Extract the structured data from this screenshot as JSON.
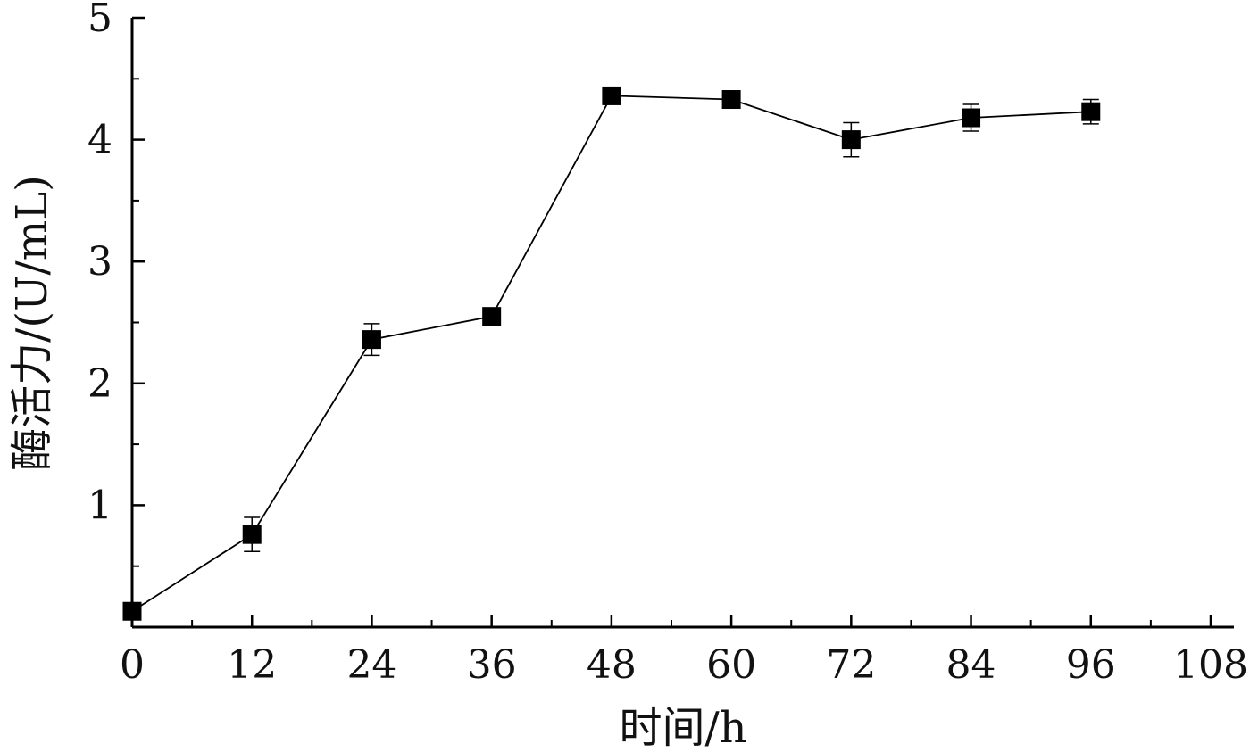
{
  "chart_data": {
    "type": "line",
    "xlabel": "时间/h",
    "ylabel": "酶活力/(U/mL)",
    "xlim": [
      0,
      108
    ],
    "ylim": [
      0,
      5
    ],
    "x_ticks": [
      0,
      12,
      24,
      36,
      48,
      60,
      72,
      84,
      96,
      108
    ],
    "x_tick_labels": [
      "0",
      "12",
      "24",
      "36",
      "48",
      "60",
      "72",
      "84",
      "96",
      "108"
    ],
    "y_ticks": [
      1,
      2,
      3,
      4,
      5
    ],
    "y_tick_labels": [
      "1",
      "2",
      "3",
      "4",
      "5"
    ],
    "grid": false,
    "marker": "square",
    "colors": {
      "line": "#000000",
      "marker": "#000000",
      "axis": "#000000"
    },
    "series": [
      {
        "x": [
          0,
          12,
          24,
          36,
          48,
          60,
          72,
          84,
          96
        ],
        "y": [
          0.13,
          0.76,
          2.36,
          2.55,
          4.36,
          4.33,
          4.0,
          4.18,
          4.23
        ],
        "error": [
          0.0,
          0.14,
          0.13,
          0.05,
          0.04,
          0.06,
          0.14,
          0.11,
          0.1
        ]
      }
    ]
  }
}
